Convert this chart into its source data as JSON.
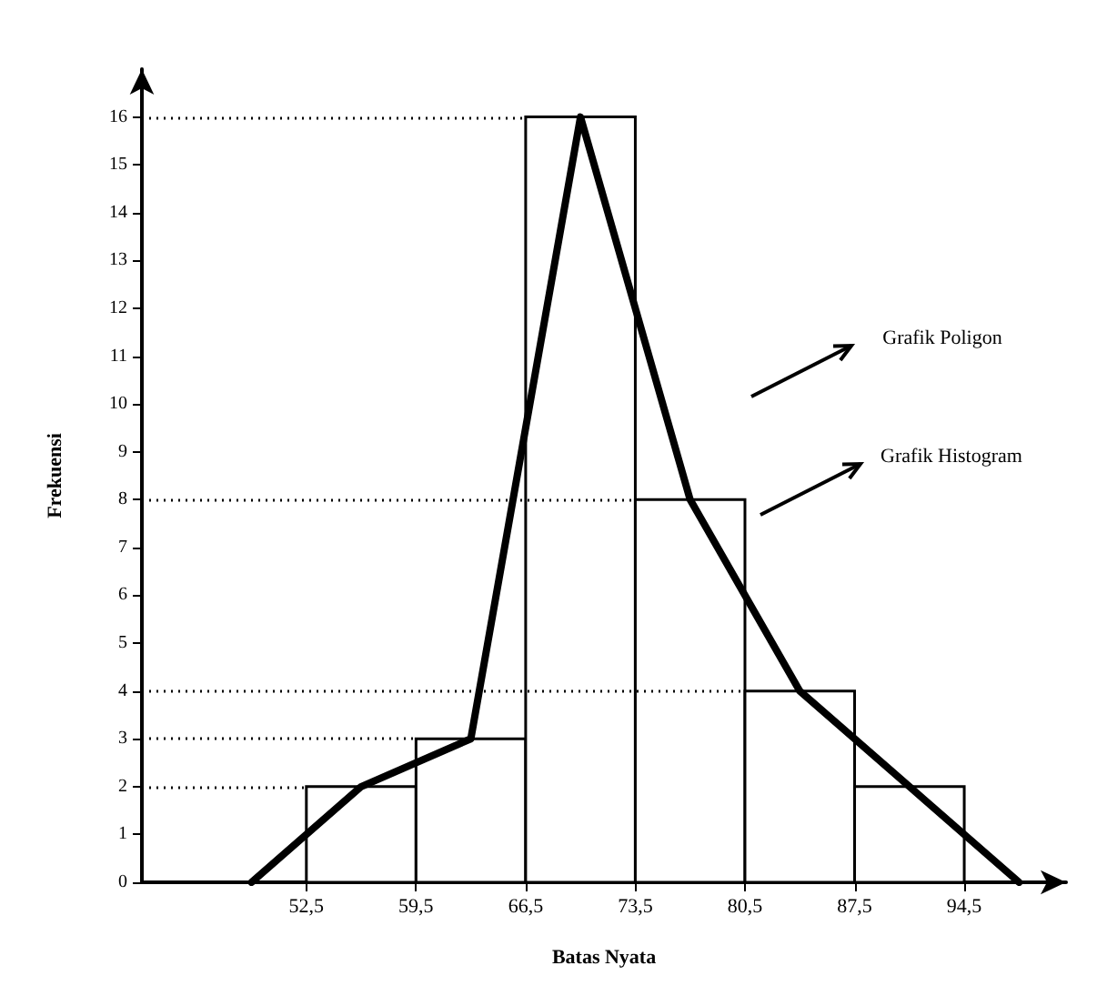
{
  "chart_data": {
    "type": "histogram",
    "xlabel": "Batas Nyata",
    "ylabel": "Frekuensi",
    "xlim": [
      42,
      101
    ],
    "ylim": [
      0,
      17
    ],
    "xticks": [
      {
        "value": 52.5,
        "label": "52,5"
      },
      {
        "value": 59.5,
        "label": "59,5"
      },
      {
        "value": 66.5,
        "label": "66,5"
      },
      {
        "value": 73.5,
        "label": "73,5"
      },
      {
        "value": 80.5,
        "label": "80,5"
      },
      {
        "value": 87.5,
        "label": "87,5"
      },
      {
        "value": 94.5,
        "label": "94,5"
      }
    ],
    "yticks": [
      0,
      1,
      2,
      3,
      4,
      5,
      6,
      7,
      8,
      9,
      10,
      11,
      12,
      13,
      14,
      15,
      16
    ],
    "grid": false,
    "series": [
      {
        "bins": [
          52.5,
          59.5,
          66.5,
          73.5,
          80.5,
          87.5,
          94.5
        ],
        "values": [
          2,
          3,
          16,
          8,
          4,
          2
        ],
        "color": "#ffffff"
      },
      {
        "type": "line",
        "x": [
          49,
          56,
          63,
          70,
          77,
          84,
          91,
          98
        ],
        "values": [
          0,
          2,
          3,
          16,
          8,
          4,
          2,
          0
        ],
        "color": "#000000",
        "marker": "none"
      }
    ],
    "ref_lines": [
      {
        "axis": "y",
        "value": 2,
        "line_style": "dotted",
        "color": "#000000"
      },
      {
        "axis": "y",
        "value": 3,
        "line_style": "dotted",
        "color": "#000000"
      },
      {
        "axis": "y",
        "value": 4,
        "line_style": "dotted",
        "color": "#000000"
      },
      {
        "axis": "y",
        "value": 8,
        "line_style": "dotted",
        "color": "#000000"
      },
      {
        "axis": "y",
        "value": 16,
        "line_style": "dotted",
        "color": "#000000"
      }
    ],
    "annotations": [
      "Grafik Poligon",
      "Grafik Histogram"
    ]
  }
}
